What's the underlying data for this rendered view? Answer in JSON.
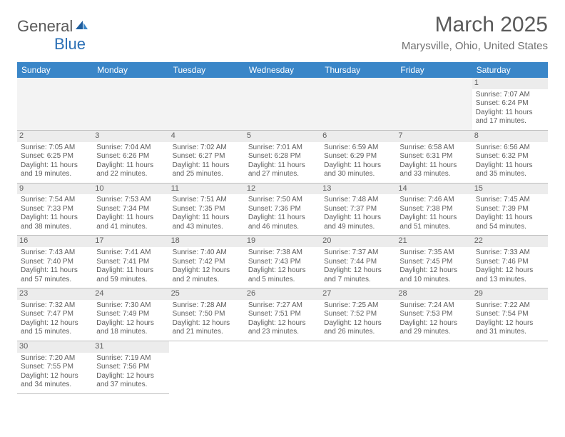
{
  "logo": {
    "text1": "General",
    "text2": "Blue"
  },
  "title": "March 2025",
  "location": "Marysville, Ohio, United States",
  "columns": [
    "Sunday",
    "Monday",
    "Tuesday",
    "Wednesday",
    "Thursday",
    "Friday",
    "Saturday"
  ],
  "colors": {
    "header_bg": "#3a86c8",
    "header_fg": "#ffffff",
    "text": "#5d5d5d",
    "daynum_bg": "#ececec",
    "border": "#bfbfbf",
    "empty_bg": "#f3f3f3",
    "logo_blue": "#2a6fb5",
    "logo_gray": "#5a5a5a"
  },
  "grid": [
    [
      null,
      null,
      null,
      null,
      null,
      null,
      {
        "n": "1",
        "sr": "7:07 AM",
        "ss": "6:24 PM",
        "dh": 11,
        "dm": 17
      }
    ],
    [
      {
        "n": "2",
        "sr": "7:05 AM",
        "ss": "6:25 PM",
        "dh": 11,
        "dm": 19
      },
      {
        "n": "3",
        "sr": "7:04 AM",
        "ss": "6:26 PM",
        "dh": 11,
        "dm": 22
      },
      {
        "n": "4",
        "sr": "7:02 AM",
        "ss": "6:27 PM",
        "dh": 11,
        "dm": 25
      },
      {
        "n": "5",
        "sr": "7:01 AM",
        "ss": "6:28 PM",
        "dh": 11,
        "dm": 27
      },
      {
        "n": "6",
        "sr": "6:59 AM",
        "ss": "6:29 PM",
        "dh": 11,
        "dm": 30
      },
      {
        "n": "7",
        "sr": "6:58 AM",
        "ss": "6:31 PM",
        "dh": 11,
        "dm": 33
      },
      {
        "n": "8",
        "sr": "6:56 AM",
        "ss": "6:32 PM",
        "dh": 11,
        "dm": 35
      }
    ],
    [
      {
        "n": "9",
        "sr": "7:54 AM",
        "ss": "7:33 PM",
        "dh": 11,
        "dm": 38
      },
      {
        "n": "10",
        "sr": "7:53 AM",
        "ss": "7:34 PM",
        "dh": 11,
        "dm": 41
      },
      {
        "n": "11",
        "sr": "7:51 AM",
        "ss": "7:35 PM",
        "dh": 11,
        "dm": 43
      },
      {
        "n": "12",
        "sr": "7:50 AM",
        "ss": "7:36 PM",
        "dh": 11,
        "dm": 46
      },
      {
        "n": "13",
        "sr": "7:48 AM",
        "ss": "7:37 PM",
        "dh": 11,
        "dm": 49
      },
      {
        "n": "14",
        "sr": "7:46 AM",
        "ss": "7:38 PM",
        "dh": 11,
        "dm": 51
      },
      {
        "n": "15",
        "sr": "7:45 AM",
        "ss": "7:39 PM",
        "dh": 11,
        "dm": 54
      }
    ],
    [
      {
        "n": "16",
        "sr": "7:43 AM",
        "ss": "7:40 PM",
        "dh": 11,
        "dm": 57
      },
      {
        "n": "17",
        "sr": "7:41 AM",
        "ss": "7:41 PM",
        "dh": 11,
        "dm": 59
      },
      {
        "n": "18",
        "sr": "7:40 AM",
        "ss": "7:42 PM",
        "dh": 12,
        "dm": 2
      },
      {
        "n": "19",
        "sr": "7:38 AM",
        "ss": "7:43 PM",
        "dh": 12,
        "dm": 5
      },
      {
        "n": "20",
        "sr": "7:37 AM",
        "ss": "7:44 PM",
        "dh": 12,
        "dm": 7
      },
      {
        "n": "21",
        "sr": "7:35 AM",
        "ss": "7:45 PM",
        "dh": 12,
        "dm": 10
      },
      {
        "n": "22",
        "sr": "7:33 AM",
        "ss": "7:46 PM",
        "dh": 12,
        "dm": 13
      }
    ],
    [
      {
        "n": "23",
        "sr": "7:32 AM",
        "ss": "7:47 PM",
        "dh": 12,
        "dm": 15
      },
      {
        "n": "24",
        "sr": "7:30 AM",
        "ss": "7:49 PM",
        "dh": 12,
        "dm": 18
      },
      {
        "n": "25",
        "sr": "7:28 AM",
        "ss": "7:50 PM",
        "dh": 12,
        "dm": 21
      },
      {
        "n": "26",
        "sr": "7:27 AM",
        "ss": "7:51 PM",
        "dh": 12,
        "dm": 23
      },
      {
        "n": "27",
        "sr": "7:25 AM",
        "ss": "7:52 PM",
        "dh": 12,
        "dm": 26
      },
      {
        "n": "28",
        "sr": "7:24 AM",
        "ss": "7:53 PM",
        "dh": 12,
        "dm": 29
      },
      {
        "n": "29",
        "sr": "7:22 AM",
        "ss": "7:54 PM",
        "dh": 12,
        "dm": 31
      }
    ],
    [
      {
        "n": "30",
        "sr": "7:20 AM",
        "ss": "7:55 PM",
        "dh": 12,
        "dm": 34
      },
      {
        "n": "31",
        "sr": "7:19 AM",
        "ss": "7:56 PM",
        "dh": 12,
        "dm": 37
      },
      null,
      null,
      null,
      null,
      null
    ]
  ],
  "labels": {
    "sunrise": "Sunrise:",
    "sunset": "Sunset:",
    "daylight_prefix": "Daylight:",
    "hours_word": "hours",
    "and_word": "and",
    "minutes_word": "minutes."
  }
}
